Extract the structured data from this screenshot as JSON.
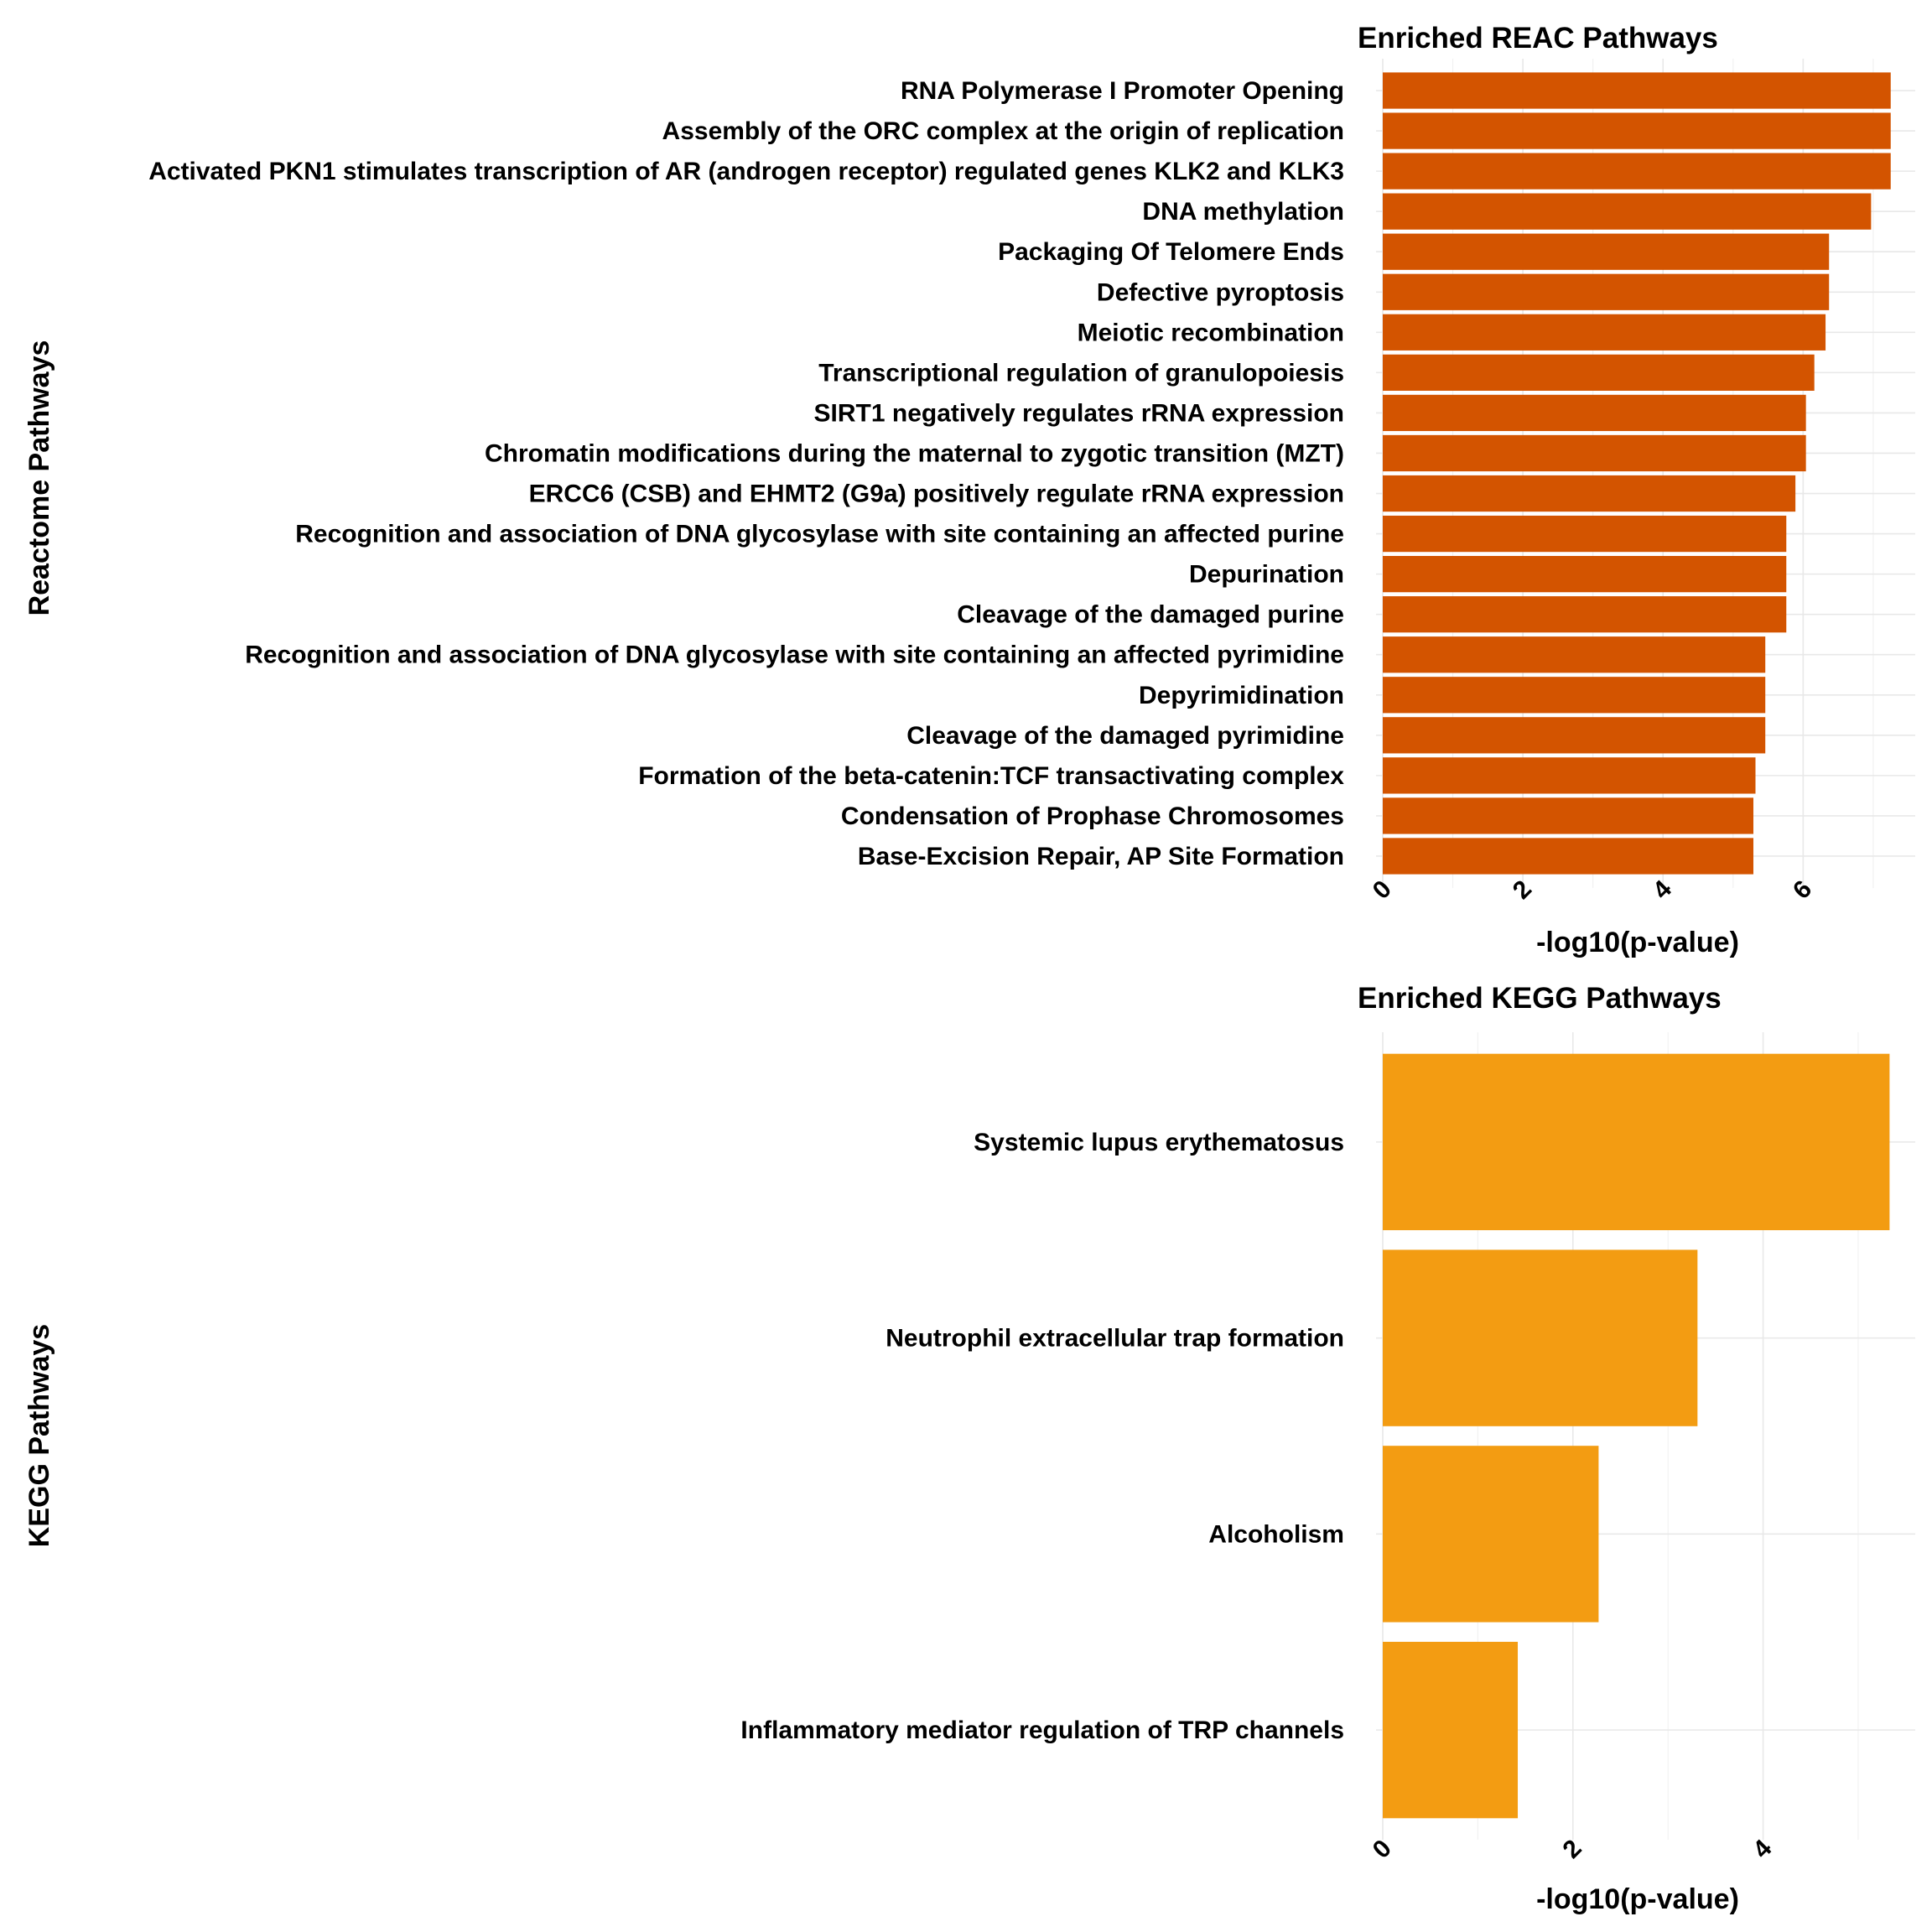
{
  "chart_data": [
    {
      "type": "bar",
      "orientation": "horizontal",
      "title": "Enriched REAC Pathways",
      "xlabel": "-log10(p-value)",
      "ylabel": "Reactome Pathways",
      "color": "#D35400",
      "xlim": [
        0,
        7.6
      ],
      "xticks": [
        0,
        2,
        4,
        6
      ],
      "grid": true,
      "categories": [
        "RNA Polymerase I Promoter Opening",
        "Assembly of the ORC complex at the origin of replication",
        "Activated PKN1 stimulates transcription of AR (androgen receptor) regulated genes KLK2 and KLK3",
        "DNA methylation",
        "Packaging Of Telomere Ends",
        "Defective pyroptosis",
        "Meiotic recombination",
        "Transcriptional regulation of granulopoiesis",
        "SIRT1 negatively regulates rRNA expression",
        "Chromatin modifications during the maternal to zygotic transition (MZT)",
        "ERCC6 (CSB) and EHMT2 (G9a) positively regulate rRNA expression",
        "Recognition and association of DNA glycosylase with site containing an affected purine",
        "Depurination",
        "Cleavage of the damaged purine",
        "Recognition and association of DNA glycosylase with site containing an affected pyrimidine",
        "Depyrimidination",
        "Cleavage of the damaged pyrimidine ",
        "Formation of the beta-catenin:TCF transactivating complex",
        "Condensation of Prophase Chromosomes",
        "Base-Excision Repair, AP Site Formation"
      ],
      "values": [
        7.25,
        7.25,
        7.25,
        6.97,
        6.37,
        6.37,
        6.32,
        6.16,
        6.04,
        6.04,
        5.89,
        5.76,
        5.76,
        5.76,
        5.46,
        5.46,
        5.46,
        5.32,
        5.29,
        5.29
      ]
    },
    {
      "type": "bar",
      "orientation": "horizontal",
      "title": "Enriched KEGG Pathways",
      "xlabel": "-log10(p-value)",
      "ylabel": "KEGG Pathways",
      "color": "#F39C12",
      "xlim": [
        0,
        5.6
      ],
      "xticks": [
        0,
        2,
        4
      ],
      "grid": true,
      "categories": [
        "Systemic lupus erythematosus",
        "Neutrophil extracellular trap formation",
        "Alcoholism",
        "Inflammatory mediator regulation of TRP channels"
      ],
      "values": [
        5.33,
        3.31,
        2.27,
        1.42
      ]
    }
  ]
}
